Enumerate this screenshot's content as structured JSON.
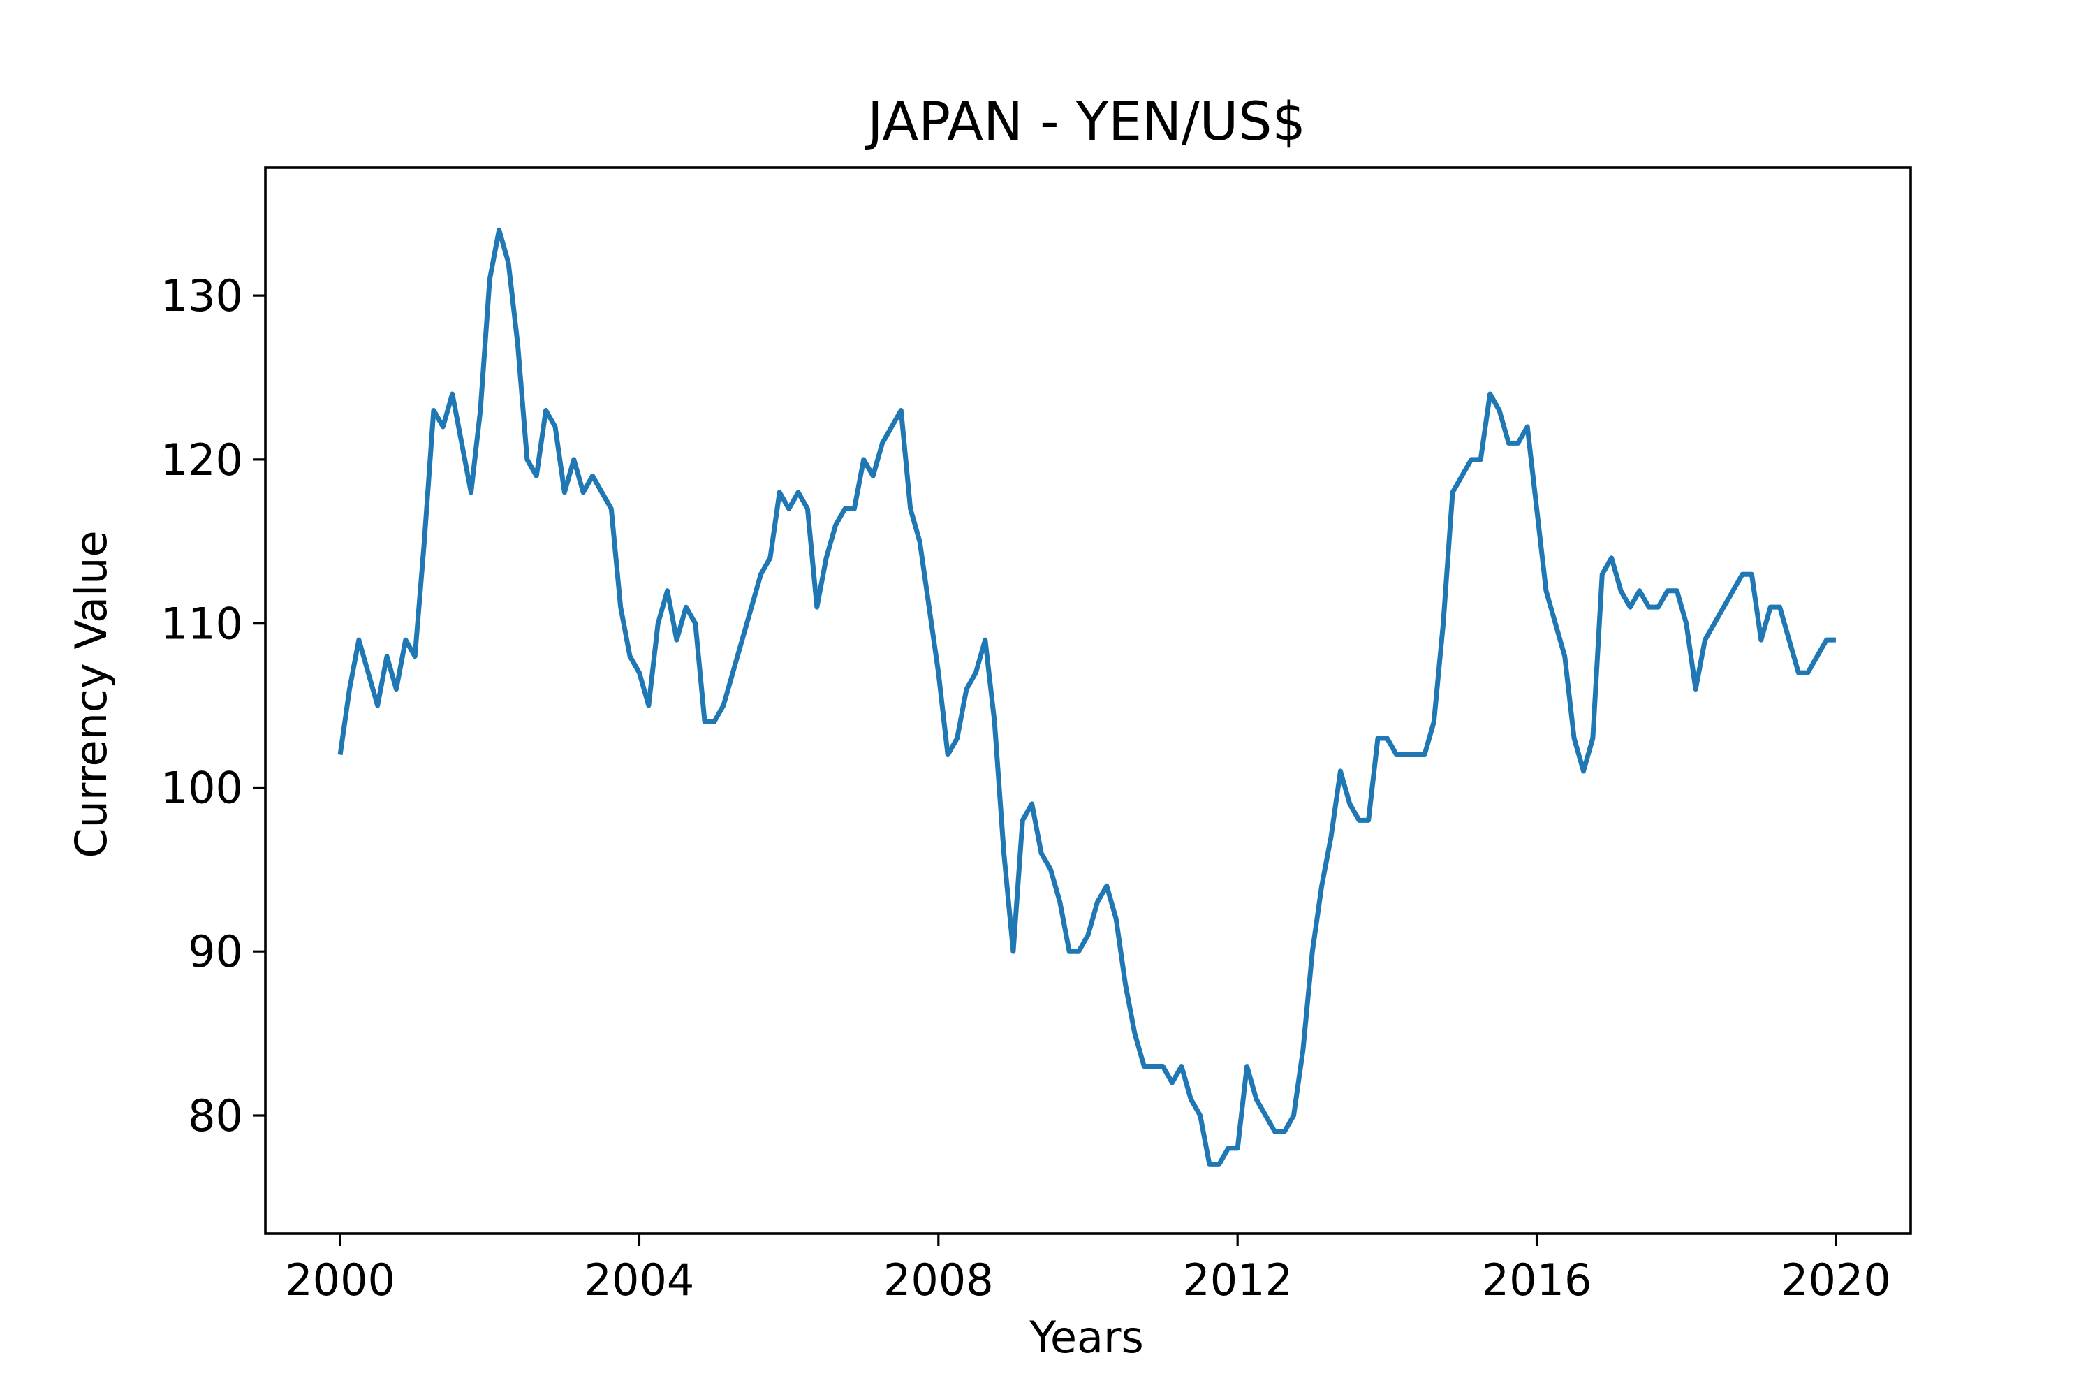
{
  "chart_data": {
    "type": "line",
    "title": "JAPAN - YEN/US$",
    "x_label": "Years",
    "y_label": "Currency Value",
    "color": "#1f77b4",
    "grid": false,
    "x": [
      2000,
      2000.125,
      2000.25,
      2000.375,
      2000.5,
      2000.625,
      2000.75,
      2000.875,
      2001,
      2001.125,
      2001.25,
      2001.375,
      2001.5,
      2001.625,
      2001.75,
      2001.875,
      2002,
      2002.125,
      2002.25,
      2002.375,
      2002.5,
      2002.625,
      2002.75,
      2002.875,
      2003,
      2003.125,
      2003.25,
      2003.375,
      2003.5,
      2003.625,
      2003.75,
      2003.875,
      2004,
      2004.125,
      2004.25,
      2004.375,
      2004.5,
      2004.625,
      2004.75,
      2004.875,
      2005,
      2005.125,
      2005.25,
      2005.375,
      2005.5,
      2005.625,
      2005.75,
      2005.875,
      2006,
      2006.125,
      2006.25,
      2006.375,
      2006.5,
      2006.625,
      2006.75,
      2006.875,
      2007,
      2007.125,
      2007.25,
      2007.375,
      2007.5,
      2007.625,
      2007.75,
      2007.875,
      2008,
      2008.125,
      2008.25,
      2008.375,
      2008.5,
      2008.625,
      2008.75,
      2008.875,
      2009,
      2009.125,
      2009.25,
      2009.375,
      2009.5,
      2009.625,
      2009.75,
      2009.875,
      2010,
      2010.125,
      2010.25,
      2010.375,
      2010.5,
      2010.625,
      2010.75,
      2010.875,
      2011,
      2011.125,
      2011.25,
      2011.375,
      2011.5,
      2011.625,
      2011.75,
      2011.875,
      2012,
      2012.125,
      2012.25,
      2012.375,
      2012.5,
      2012.625,
      2012.75,
      2012.875,
      2013,
      2013.125,
      2013.25,
      2013.375,
      2013.5,
      2013.625,
      2013.75,
      2013.875,
      2014,
      2014.125,
      2014.25,
      2014.375,
      2014.5,
      2014.625,
      2014.75,
      2014.875,
      2015,
      2015.125,
      2015.25,
      2015.375,
      2015.5,
      2015.625,
      2015.75,
      2015.875,
      2016,
      2016.125,
      2016.25,
      2016.375,
      2016.5,
      2016.625,
      2016.75,
      2016.875,
      2017,
      2017.125,
      2017.25,
      2017.375,
      2017.5,
      2017.625,
      2017.75,
      2017.875,
      2018,
      2018.125,
      2018.25,
      2018.375,
      2018.5,
      2018.625,
      2018.75,
      2018.875,
      2019,
      2019.125,
      2019.25,
      2019.375,
      2019.5,
      2019.625,
      2019.75,
      2019.875,
      2020
    ],
    "values": [
      102,
      106,
      109,
      107,
      105,
      108,
      106,
      109,
      108,
      115,
      123,
      122,
      124,
      121,
      118,
      123,
      131,
      134,
      132,
      127,
      120,
      119,
      123,
      122,
      118,
      120,
      118,
      119,
      118,
      117,
      111,
      108,
      107,
      105,
      110,
      112,
      109,
      111,
      110,
      104,
      104,
      105,
      107,
      109,
      111,
      113,
      114,
      118,
      117,
      118,
      117,
      111,
      114,
      116,
      117,
      117,
      120,
      119,
      121,
      122,
      123,
      117,
      115,
      111,
      107,
      102,
      103,
      106,
      107,
      109,
      104,
      96,
      90,
      98,
      99,
      96,
      95,
      93,
      90,
      90,
      91,
      93,
      94,
      92,
      88,
      85,
      83,
      83,
      83,
      82,
      83,
      81,
      80,
      77,
      77,
      78,
      78,
      83,
      81,
      80,
      79,
      79,
      80,
      84,
      90,
      94,
      97,
      101,
      99,
      98,
      98,
      103,
      103,
      102,
      102,
      102,
      102,
      104,
      110,
      118,
      119,
      120,
      120,
      124,
      123,
      121,
      121,
      122,
      117,
      112,
      110,
      108,
      103,
      101,
      103,
      113,
      114,
      112,
      111,
      112,
      111,
      111,
      112,
      112,
      110,
      106,
      109,
      110,
      111,
      112,
      113,
      113,
      109,
      111,
      111,
      109,
      107,
      107,
      108,
      109,
      109
    ],
    "xlim": [
      1999,
      2021
    ],
    "xticks": [
      2000,
      2004,
      2008,
      2012,
      2016,
      2020
    ],
    "ylim": [
      72.8,
      137.8
    ],
    "yticks": [
      80,
      90,
      100,
      110,
      120,
      130
    ]
  }
}
